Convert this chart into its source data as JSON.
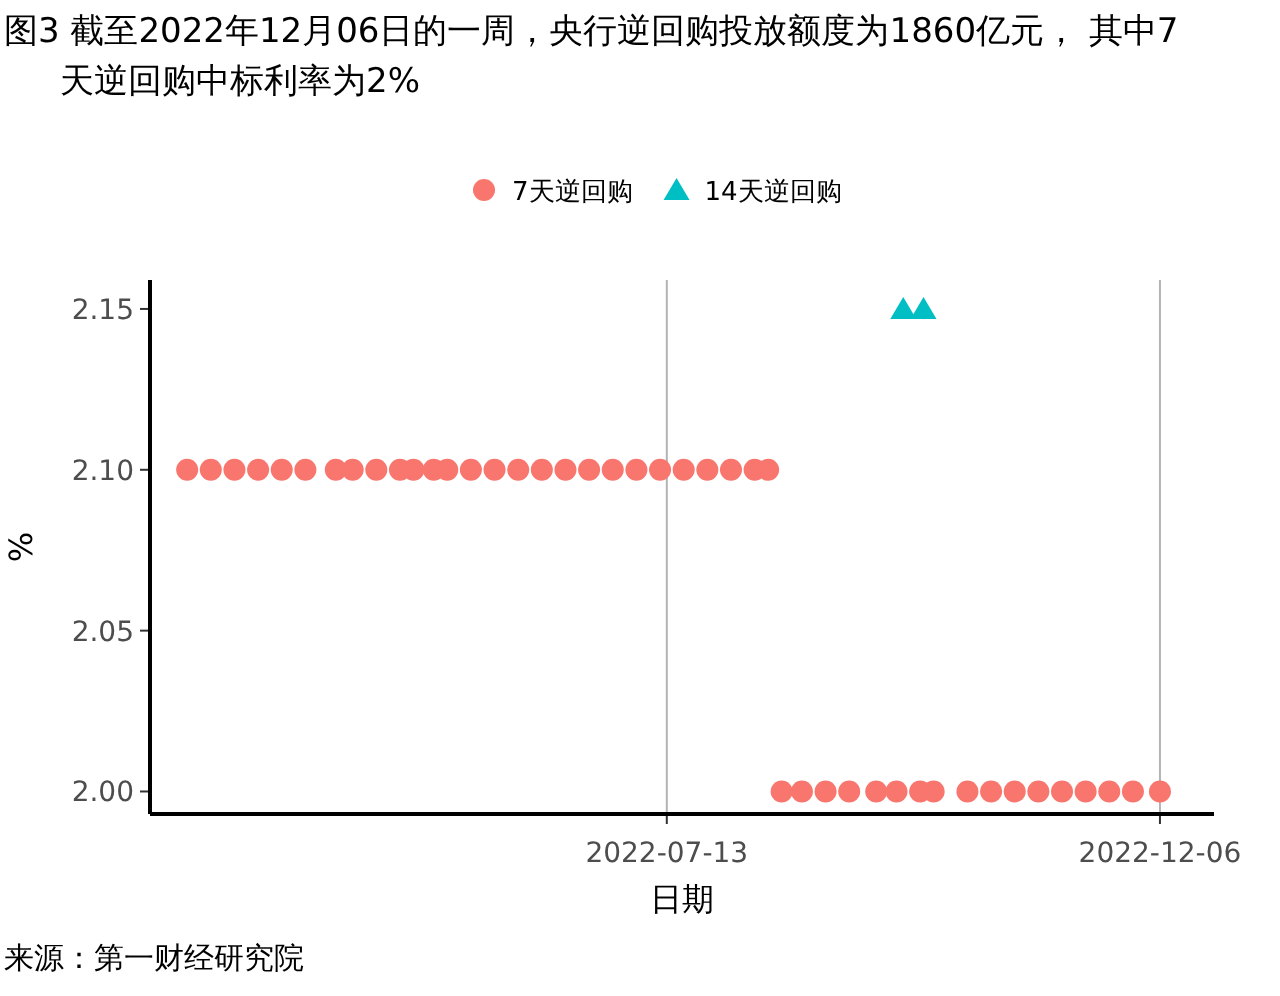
{
  "chart_data": {
    "type": "scatter",
    "title": "图3  截至2022年12月06日的一周，央行逆回购投放额度为1860亿元， 其中7天逆回购中标利率为2%",
    "xlabel": "日期",
    "ylabel": "%",
    "annotations": [
      "来源：第一财经研究院"
    ],
    "legend": "top",
    "grid": "x",
    "xlim": [
      "2022-02-10",
      "2022-12-22"
    ],
    "xticks": [
      "2022-07-13",
      "2022-12-06"
    ],
    "ylim": [
      1.993,
      2.159
    ],
    "yticks": [
      {
        "value": 2.0,
        "label": "2.00"
      },
      {
        "value": 2.05,
        "label": "2.05"
      },
      {
        "value": 2.1,
        "label": "2.10"
      },
      {
        "value": 2.15,
        "label": "2.15"
      }
    ],
    "series": [
      {
        "name": "7天逆回购",
        "color": "#f8766d",
        "marker": "circle",
        "x": [
          "2022-02-21",
          "2022-02-28",
          "2022-03-07",
          "2022-03-14",
          "2022-03-21",
          "2022-03-28",
          "2022-04-06",
          "2022-04-11",
          "2022-04-18",
          "2022-04-25",
          "2022-04-29",
          "2022-05-05",
          "2022-05-09",
          "2022-05-16",
          "2022-05-23",
          "2022-05-30",
          "2022-06-06",
          "2022-06-13",
          "2022-06-20",
          "2022-06-27",
          "2022-07-04",
          "2022-07-11",
          "2022-07-18",
          "2022-07-25",
          "2022-08-01",
          "2022-08-08",
          "2022-08-12",
          "2022-08-16",
          "2022-08-22",
          "2022-08-29",
          "2022-09-05",
          "2022-09-13",
          "2022-09-19",
          "2022-09-26",
          "2022-09-30",
          "2022-10-10",
          "2022-10-17",
          "2022-10-24",
          "2022-10-31",
          "2022-11-07",
          "2022-11-14",
          "2022-11-21",
          "2022-11-28",
          "2022-12-06"
        ],
        "values": [
          2.1,
          2.1,
          2.1,
          2.1,
          2.1,
          2.1,
          2.1,
          2.1,
          2.1,
          2.1,
          2.1,
          2.1,
          2.1,
          2.1,
          2.1,
          2.1,
          2.1,
          2.1,
          2.1,
          2.1,
          2.1,
          2.1,
          2.1,
          2.1,
          2.1,
          2.1,
          2.1,
          2.0,
          2.0,
          2.0,
          2.0,
          2.0,
          2.0,
          2.0,
          2.0,
          2.0,
          2.0,
          2.0,
          2.0,
          2.0,
          2.0,
          2.0,
          2.0,
          2.0
        ]
      },
      {
        "name": "14天逆回购",
        "color": "#00bfc4",
        "marker": "triangle",
        "x": [
          "2022-09-21",
          "2022-09-27"
        ],
        "values": [
          2.15,
          2.15
        ]
      }
    ]
  }
}
